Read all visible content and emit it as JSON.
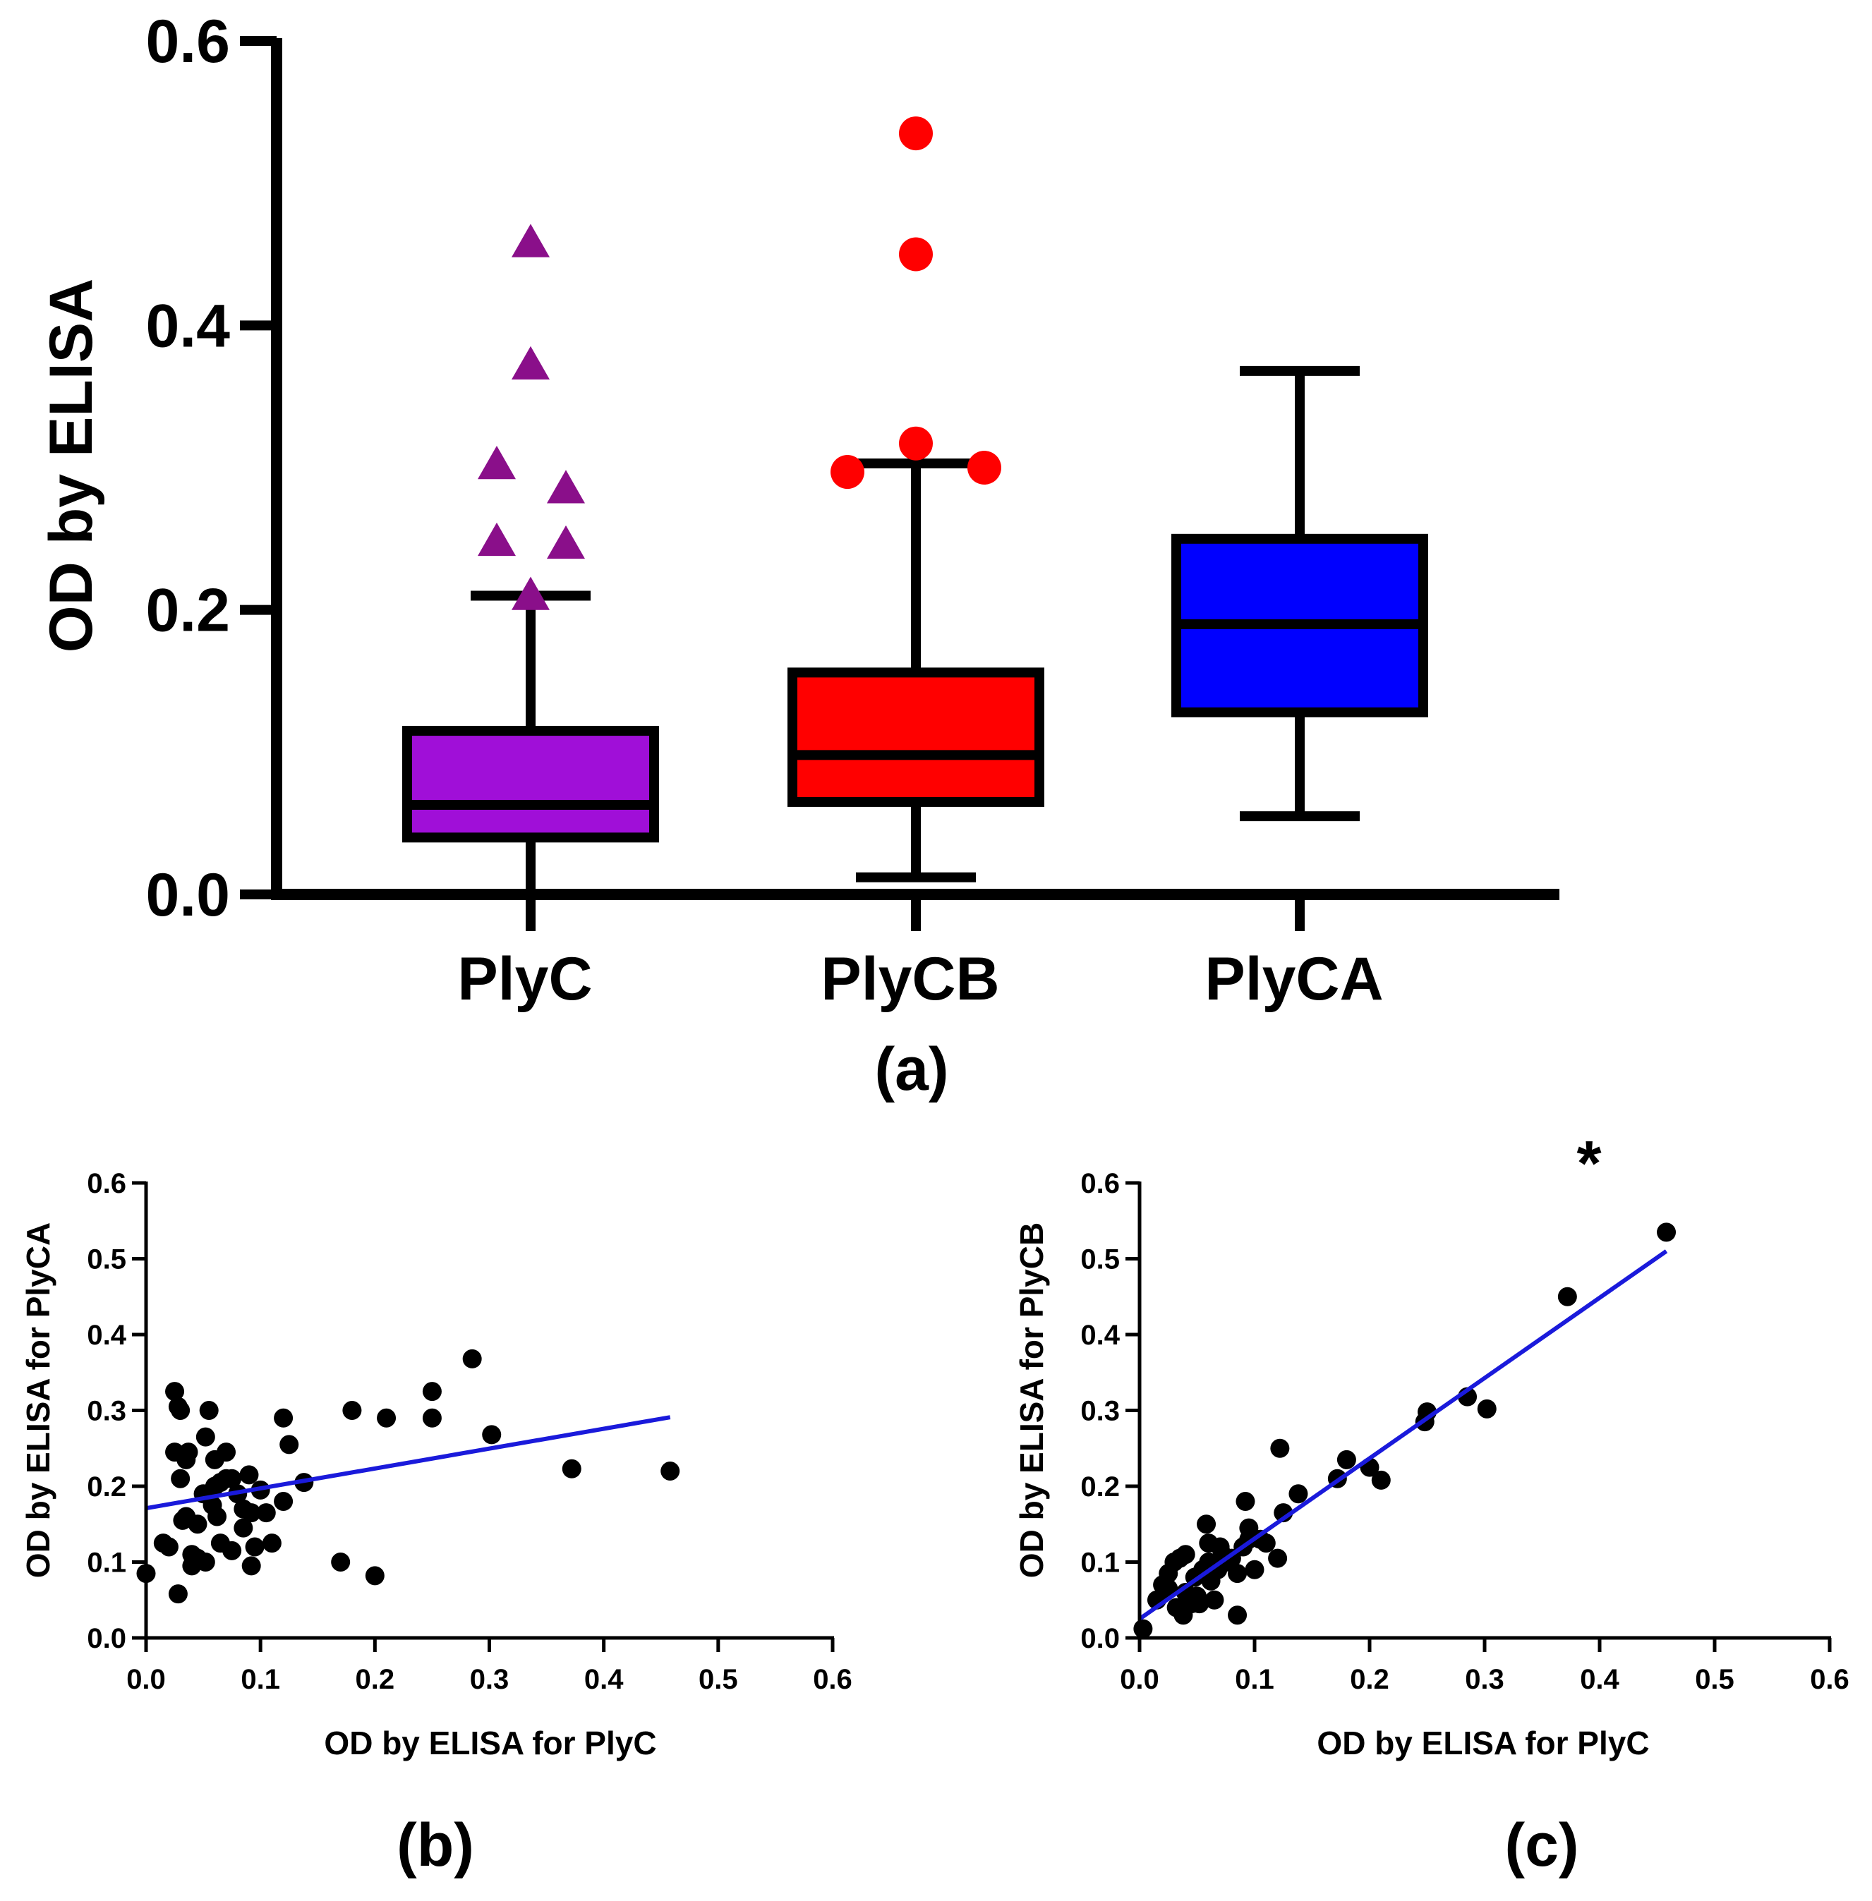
{
  "chart_data": [
    {
      "type": "box",
      "panel_label": "(a)",
      "ylabel": "OD by  ELISA",
      "ylim": [
        0,
        0.6
      ],
      "yticks": [
        "0.0",
        "0.2",
        "0.4",
        "0.6"
      ],
      "categories": [
        "PlyC",
        "PlyCB",
        "PlyCA"
      ],
      "boxes": [
        {
          "name": "PlyC",
          "color": "#a00fd8",
          "marker": "triangle",
          "marker_color": "#8a0f8a",
          "whisker_low": 0.0,
          "q1": 0.04,
          "median": 0.063,
          "q3": 0.115,
          "whisker_high": 0.21,
          "outliers": [
            0.458,
            0.372,
            0.302,
            0.285,
            0.248,
            0.246,
            0.21
          ]
        },
        {
          "name": "PlyCB",
          "color": "#ff0000",
          "marker": "circle",
          "marker_color": "#ff0000",
          "whisker_low": 0.012,
          "q1": 0.065,
          "median": 0.098,
          "q3": 0.156,
          "whisker_high": 0.303,
          "outliers": [
            0.535,
            0.45,
            0.317,
            0.3,
            0.297
          ]
        },
        {
          "name": "PlyCA",
          "color": "#0000ff",
          "marker": "none",
          "marker_color": "#0000ff",
          "whisker_low": 0.055,
          "q1": 0.128,
          "median": 0.19,
          "q3": 0.25,
          "whisker_high": 0.368,
          "outliers": []
        }
      ]
    },
    {
      "type": "scatter",
      "panel_label": "(b)",
      "xlabel": "OD by ELISA for PlyC",
      "ylabel": "OD by ELISA for PlyCA",
      "xlim": [
        0,
        0.6
      ],
      "ylim": [
        0,
        0.6
      ],
      "xticks": [
        "0.0",
        "0.1",
        "0.2",
        "0.3",
        "0.4",
        "0.5",
        "0.6"
      ],
      "yticks": [
        "0.0",
        "0.1",
        "0.2",
        "0.3",
        "0.4",
        "0.5",
        "0.6"
      ],
      "trendline": {
        "color": "#1a1adb",
        "x": [
          0.0,
          0.458
        ],
        "y": [
          0.171,
          0.291
        ]
      },
      "points": [
        [
          0.0,
          0.085
        ],
        [
          0.015,
          0.125
        ],
        [
          0.02,
          0.12
        ],
        [
          0.025,
          0.325
        ],
        [
          0.028,
          0.305
        ],
        [
          0.03,
          0.3
        ],
        [
          0.025,
          0.245
        ],
        [
          0.03,
          0.21
        ],
        [
          0.028,
          0.058
        ],
        [
          0.032,
          0.155
        ],
        [
          0.035,
          0.16
        ],
        [
          0.037,
          0.245
        ],
        [
          0.035,
          0.235
        ],
        [
          0.04,
          0.11
        ],
        [
          0.04,
          0.095
        ],
        [
          0.045,
          0.15
        ],
        [
          0.045,
          0.105
        ],
        [
          0.05,
          0.19
        ],
        [
          0.052,
          0.265
        ],
        [
          0.055,
          0.3
        ],
        [
          0.052,
          0.1
        ],
        [
          0.058,
          0.175
        ],
        [
          0.06,
          0.2
        ],
        [
          0.06,
          0.235
        ],
        [
          0.062,
          0.16
        ],
        [
          0.065,
          0.125
        ],
        [
          0.065,
          0.205
        ],
        [
          0.07,
          0.21
        ],
        [
          0.07,
          0.245
        ],
        [
          0.075,
          0.21
        ],
        [
          0.075,
          0.115
        ],
        [
          0.08,
          0.19
        ],
        [
          0.085,
          0.17
        ],
        [
          0.085,
          0.145
        ],
        [
          0.09,
          0.215
        ],
        [
          0.092,
          0.165
        ],
        [
          0.092,
          0.095
        ],
        [
          0.095,
          0.12
        ],
        [
          0.1,
          0.195
        ],
        [
          0.105,
          0.165
        ],
        [
          0.11,
          0.125
        ],
        [
          0.12,
          0.29
        ],
        [
          0.12,
          0.18
        ],
        [
          0.125,
          0.255
        ],
        [
          0.138,
          0.205
        ],
        [
          0.17,
          0.1
        ],
        [
          0.18,
          0.3
        ],
        [
          0.2,
          0.082
        ],
        [
          0.21,
          0.29
        ],
        [
          0.25,
          0.29
        ],
        [
          0.25,
          0.325
        ],
        [
          0.285,
          0.368
        ],
        [
          0.302,
          0.268
        ],
        [
          0.372,
          0.223
        ],
        [
          0.458,
          0.22
        ]
      ]
    },
    {
      "type": "scatter",
      "panel_label": "(c)",
      "annotation": "*",
      "xlabel": "OD by ELISA for PlyC",
      "ylabel": "OD by ELISA for PlyCB",
      "xlim": [
        0,
        0.6
      ],
      "ylim": [
        0,
        0.6
      ],
      "xticks": [
        "0.0",
        "0.1",
        "0.2",
        "0.3",
        "0.4",
        "0.5",
        "0.6"
      ],
      "yticks": [
        "0.0",
        "0.1",
        "0.2",
        "0.3",
        "0.4",
        "0.5",
        "0.6"
      ],
      "trendline": {
        "color": "#1a1adb",
        "x": [
          0.0,
          0.458
        ],
        "y": [
          0.025,
          0.51
        ]
      },
      "points": [
        [
          0.003,
          0.012
        ],
        [
          0.015,
          0.05
        ],
        [
          0.02,
          0.07
        ],
        [
          0.025,
          0.065
        ],
        [
          0.025,
          0.085
        ],
        [
          0.03,
          0.1
        ],
        [
          0.032,
          0.04
        ],
        [
          0.035,
          0.105
        ],
        [
          0.038,
          0.03
        ],
        [
          0.04,
          0.11
        ],
        [
          0.04,
          0.06
        ],
        [
          0.045,
          0.045
        ],
        [
          0.048,
          0.08
        ],
        [
          0.05,
          0.055
        ],
        [
          0.052,
          0.045
        ],
        [
          0.055,
          0.09
        ],
        [
          0.058,
          0.15
        ],
        [
          0.06,
          0.1
        ],
        [
          0.06,
          0.125
        ],
        [
          0.062,
          0.075
        ],
        [
          0.065,
          0.05
        ],
        [
          0.068,
          0.09
        ],
        [
          0.07,
          0.12
        ],
        [
          0.072,
          0.11
        ],
        [
          0.075,
          0.1
        ],
        [
          0.08,
          0.105
        ],
        [
          0.085,
          0.085
        ],
        [
          0.085,
          0.03
        ],
        [
          0.09,
          0.12
        ],
        [
          0.092,
          0.18
        ],
        [
          0.095,
          0.145
        ],
        [
          0.095,
          0.13
        ],
        [
          0.1,
          0.09
        ],
        [
          0.105,
          0.13
        ],
        [
          0.11,
          0.125
        ],
        [
          0.12,
          0.105
        ],
        [
          0.122,
          0.25
        ],
        [
          0.125,
          0.165
        ],
        [
          0.138,
          0.19
        ],
        [
          0.172,
          0.21
        ],
        [
          0.18,
          0.235
        ],
        [
          0.2,
          0.225
        ],
        [
          0.21,
          0.208
        ],
        [
          0.248,
          0.285
        ],
        [
          0.25,
          0.298
        ],
        [
          0.285,
          0.318
        ],
        [
          0.302,
          0.302
        ],
        [
          0.372,
          0.45
        ],
        [
          0.458,
          0.535
        ]
      ]
    }
  ]
}
